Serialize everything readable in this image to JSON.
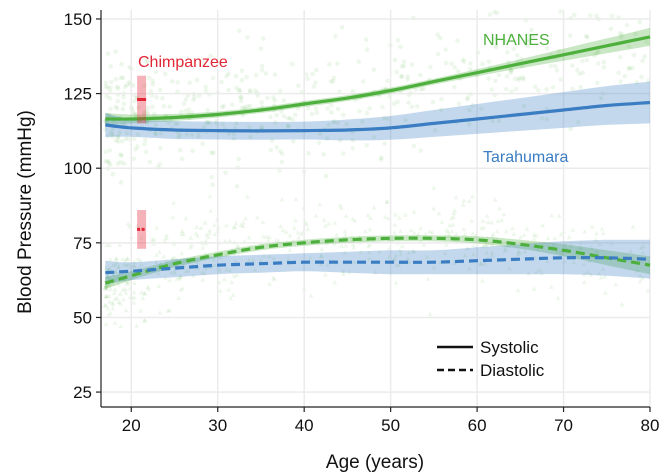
{
  "chart_data": {
    "type": "line",
    "xlabel": "Age (years)",
    "ylabel": "Blood Pressure (mmHg)",
    "xlim": [
      16.5,
      80
    ],
    "ylim": [
      20,
      153
    ],
    "xticks": [
      20,
      30,
      40,
      50,
      60,
      70,
      80
    ],
    "yticks": [
      25,
      50,
      75,
      100,
      125,
      150
    ],
    "grid": true,
    "legend": {
      "placement": "bottom-right",
      "entries": [
        {
          "label": "Systolic",
          "style": "solid"
        },
        {
          "label": "Diastolic",
          "style": "dashed"
        }
      ]
    },
    "groups": [
      {
        "label": "NHANES",
        "color": "#4daf3c"
      },
      {
        "label": "Tarahumara",
        "color": "#3a7dc2"
      },
      {
        "label": "Chimpanzee",
        "color": "#e32636"
      }
    ],
    "series": [
      {
        "group": 0,
        "measure": "Systolic",
        "style": "solid",
        "x": [
          17,
          20,
          25,
          30,
          35,
          40,
          45,
          50,
          55,
          60,
          65,
          70,
          75,
          80
        ],
        "y": [
          116.5,
          116.5,
          117,
          118,
          119.5,
          121.5,
          123.5,
          126,
          129,
          132,
          135,
          138,
          141,
          144
        ],
        "ci": [
          2,
          1.5,
          1.2,
          1,
          1,
          1,
          1,
          1,
          1,
          1.2,
          1.5,
          2,
          2.5,
          3
        ]
      },
      {
        "group": 1,
        "measure": "Systolic",
        "style": "solid",
        "x": [
          17,
          20,
          25,
          30,
          35,
          40,
          45,
          50,
          55,
          60,
          65,
          70,
          75,
          80
        ],
        "y": [
          114.5,
          113.5,
          112.8,
          112.6,
          112.5,
          112.6,
          112.8,
          113.5,
          115,
          116.5,
          118,
          119.5,
          121,
          122
        ],
        "ci": [
          4,
          3,
          3,
          3,
          3,
          3,
          3.5,
          4,
          4.5,
          5,
          5.5,
          6,
          6.5,
          7
        ]
      },
      {
        "group": 0,
        "measure": "Diastolic",
        "style": "dashed",
        "x": [
          17,
          20,
          25,
          30,
          35,
          40,
          45,
          50,
          55,
          60,
          65,
          70,
          75,
          80
        ],
        "y": [
          61.5,
          64,
          68,
          71,
          73.5,
          75,
          76,
          76.5,
          76.5,
          76,
          74.5,
          72.5,
          70,
          67.5
        ],
        "ci": [
          2,
          1.5,
          1.2,
          1,
          1,
          1,
          1,
          1,
          1,
          1.2,
          1.5,
          2,
          2.5,
          3
        ]
      },
      {
        "group": 1,
        "measure": "Diastolic",
        "style": "dashed",
        "x": [
          17,
          20,
          25,
          30,
          35,
          40,
          45,
          50,
          55,
          60,
          65,
          70,
          75,
          80
        ],
        "y": [
          65,
          65.5,
          66.5,
          67.5,
          68,
          68.5,
          68.5,
          68.5,
          68.5,
          69,
          69.5,
          70,
          70,
          69.5
        ],
        "ci": [
          4,
          3,
          3,
          3,
          3,
          3,
          3.5,
          4,
          4,
          4.5,
          5,
          5.5,
          6,
          6.5
        ]
      }
    ],
    "chimpanzee": [
      {
        "measure": "Systolic",
        "x": 21.2,
        "mean": 123,
        "low": 115,
        "high": 131
      },
      {
        "measure": "Diastolic",
        "x": 21.2,
        "mean": 79.5,
        "low": 73,
        "high": 86
      }
    ],
    "colors": {
      "nhanes": "#4daf3c",
      "tarahumara": "#3a7dc2",
      "chimpanzee": "#e32636",
      "grid": "#ebebeb"
    }
  }
}
